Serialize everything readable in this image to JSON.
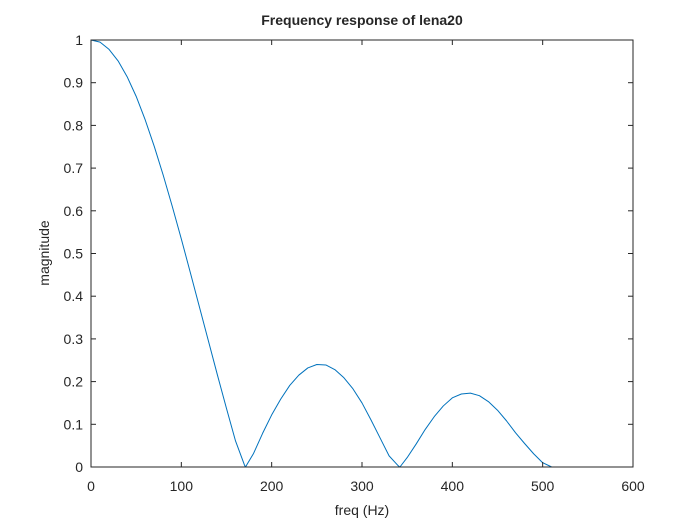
{
  "chart_data": {
    "type": "line",
    "title": "Frequency response of lena20",
    "xlabel": "freq (Hz)",
    "ylabel": "magnitude",
    "xlim": [
      0,
      600
    ],
    "ylim": [
      0,
      1
    ],
    "xticks": [
      0,
      100,
      200,
      300,
      400,
      500,
      600
    ],
    "yticks": [
      0,
      0.1,
      0.2,
      0.3,
      0.4,
      0.5,
      0.6,
      0.7,
      0.8,
      0.9,
      1
    ],
    "xtick_labels": [
      "0",
      "100",
      "200",
      "300",
      "400",
      "500",
      "600"
    ],
    "ytick_labels": [
      "0",
      "0.1",
      "0.2",
      "0.3",
      "0.4",
      "0.5",
      "0.6",
      "0.7",
      "0.8",
      "0.9",
      "1"
    ],
    "grid": false,
    "legend": "none",
    "series": [
      {
        "color": "#0072BD",
        "x": [
          0,
          10,
          20,
          30,
          40,
          50,
          60,
          70,
          80,
          90,
          100,
          110,
          120,
          130,
          140,
          150,
          160,
          170,
          171,
          180,
          190,
          200,
          210,
          220,
          230,
          240,
          250,
          260,
          270,
          280,
          290,
          300,
          310,
          320,
          330,
          340,
          342,
          350,
          360,
          370,
          380,
          390,
          400,
          410,
          420,
          430,
          440,
          450,
          460,
          470,
          480,
          490,
          500,
          510
        ],
        "y": [
          1.0,
          0.995,
          0.978,
          0.951,
          0.914,
          0.868,
          0.813,
          0.751,
          0.683,
          0.61,
          0.534,
          0.455,
          0.375,
          0.295,
          0.215,
          0.137,
          0.061,
          0.004,
          0.0,
          0.032,
          0.079,
          0.122,
          0.159,
          0.191,
          0.215,
          0.232,
          0.24,
          0.239,
          0.228,
          0.209,
          0.183,
          0.15,
          0.11,
          0.068,
          0.026,
          0.003,
          0.0,
          0.022,
          0.054,
          0.088,
          0.118,
          0.143,
          0.162,
          0.171,
          0.173,
          0.167,
          0.153,
          0.133,
          0.108,
          0.08,
          0.055,
          0.031,
          0.01,
          0.0
        ]
      }
    ]
  }
}
